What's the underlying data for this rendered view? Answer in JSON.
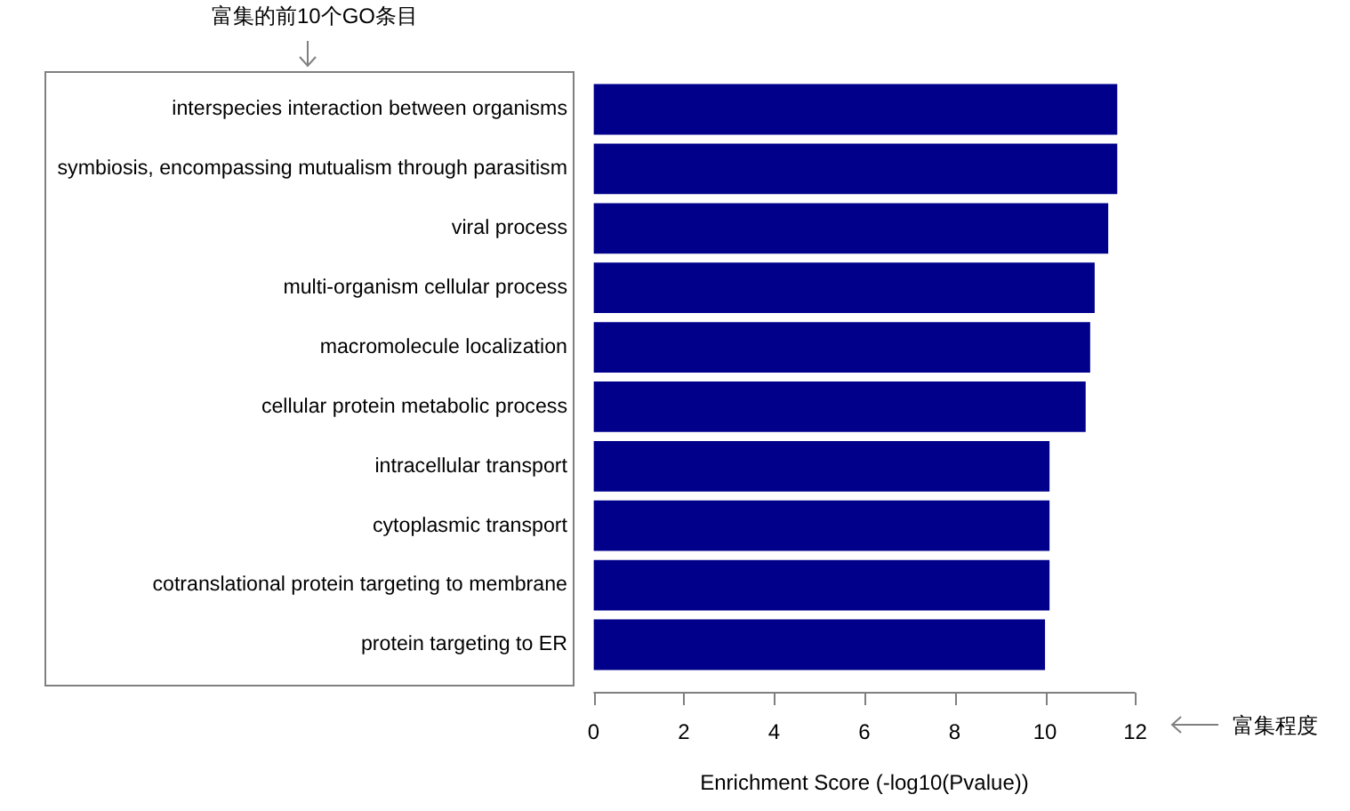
{
  "chart_data": {
    "type": "bar",
    "orientation": "horizontal",
    "categories": [
      "interspecies interaction between organisms",
      "symbiosis, encompassing mutualism through parasitism",
      "viral process",
      "multi-organism cellular process",
      "macromolecule localization",
      "cellular protein metabolic process",
      "intracellular transport",
      "cytoplasmic transport",
      "cotranslational protein targeting to membrane",
      "protein targeting to ER"
    ],
    "values": [
      11.6,
      11.6,
      11.4,
      11.1,
      11.0,
      10.9,
      10.1,
      10.1,
      10.1,
      10.0
    ],
    "color": "#00008b",
    "xlabel": "Enrichment Score (-log10(Pvalue))",
    "xlim": [
      0,
      12
    ],
    "xticks": [
      0,
      2,
      4,
      6,
      8,
      10,
      12
    ],
    "annotations": [
      "富集的前10个GO条目",
      "富集程度"
    ]
  }
}
